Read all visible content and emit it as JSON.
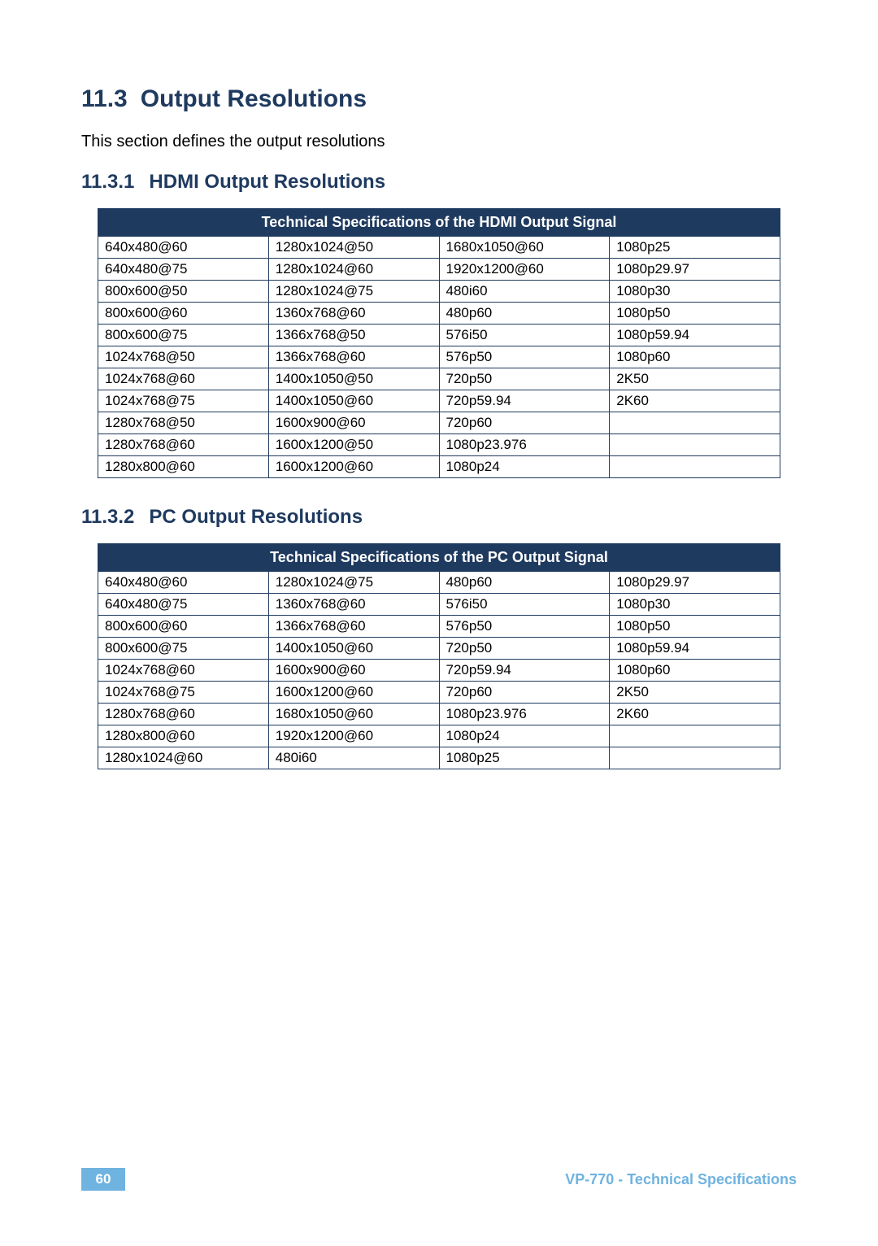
{
  "section": {
    "number": "11.3",
    "title": "Output Resolutions",
    "intro": "This section defines the output resolutions"
  },
  "sub1": {
    "number": "11.3.1",
    "title": "HDMI Output Resolutions",
    "table_title": "Technical Specifications of the HDMI Output Signal",
    "rows": [
      [
        "640x480@60",
        "1280x1024@50",
        "1680x1050@60",
        "1080p25"
      ],
      [
        "640x480@75",
        "1280x1024@60",
        "1920x1200@60",
        "1080p29.97"
      ],
      [
        "800x600@50",
        "1280x1024@75",
        "480i60",
        "1080p30"
      ],
      [
        "800x600@60",
        "1360x768@60",
        "480p60",
        "1080p50"
      ],
      [
        "800x600@75",
        "1366x768@50",
        "576i50",
        "1080p59.94"
      ],
      [
        "1024x768@50",
        "1366x768@60",
        "576p50",
        "1080p60"
      ],
      [
        "1024x768@60",
        "1400x1050@50",
        "720p50",
        "2K50"
      ],
      [
        "1024x768@75",
        "1400x1050@60",
        "720p59.94",
        "2K60"
      ],
      [
        "1280x768@50",
        "1600x900@60",
        "720p60",
        ""
      ],
      [
        "1280x768@60",
        "1600x1200@50",
        "1080p23.976",
        ""
      ],
      [
        "1280x800@60",
        "1600x1200@60",
        "1080p24",
        ""
      ]
    ]
  },
  "sub2": {
    "number": "11.3.2",
    "title": "PC Output Resolutions",
    "table_title": "Technical Specifications of the PC Output Signal",
    "rows": [
      [
        "640x480@60",
        "1280x1024@75",
        "480p60",
        "1080p29.97"
      ],
      [
        "640x480@75",
        "1360x768@60",
        "576i50",
        "1080p30"
      ],
      [
        "800x600@60",
        "1366x768@60",
        "576p50",
        "1080p50"
      ],
      [
        "800x600@75",
        "1400x1050@60",
        "720p50",
        "1080p59.94"
      ],
      [
        "1024x768@60",
        "1600x900@60",
        "720p59.94",
        "1080p60"
      ],
      [
        "1024x768@75",
        "1600x1200@60",
        "720p60",
        "2K50"
      ],
      [
        "1280x768@60",
        "1680x1050@60",
        "1080p23.976",
        "2K60"
      ],
      [
        "1280x800@60",
        "1920x1200@60",
        "1080p24",
        ""
      ],
      [
        "1280x1024@60",
        "480i60",
        "1080p25",
        ""
      ]
    ]
  },
  "footer": {
    "page": "60",
    "title": "VP-770 - Technical Specifications"
  },
  "colors": {
    "heading": "#1f3a5f",
    "table_header_bg": "#1f3a5f",
    "table_header_fg": "#ffffff",
    "border": "#1f3a5f",
    "footer_accent": "#6fb3e0",
    "body_text": "#000000",
    "background": "#ffffff"
  }
}
